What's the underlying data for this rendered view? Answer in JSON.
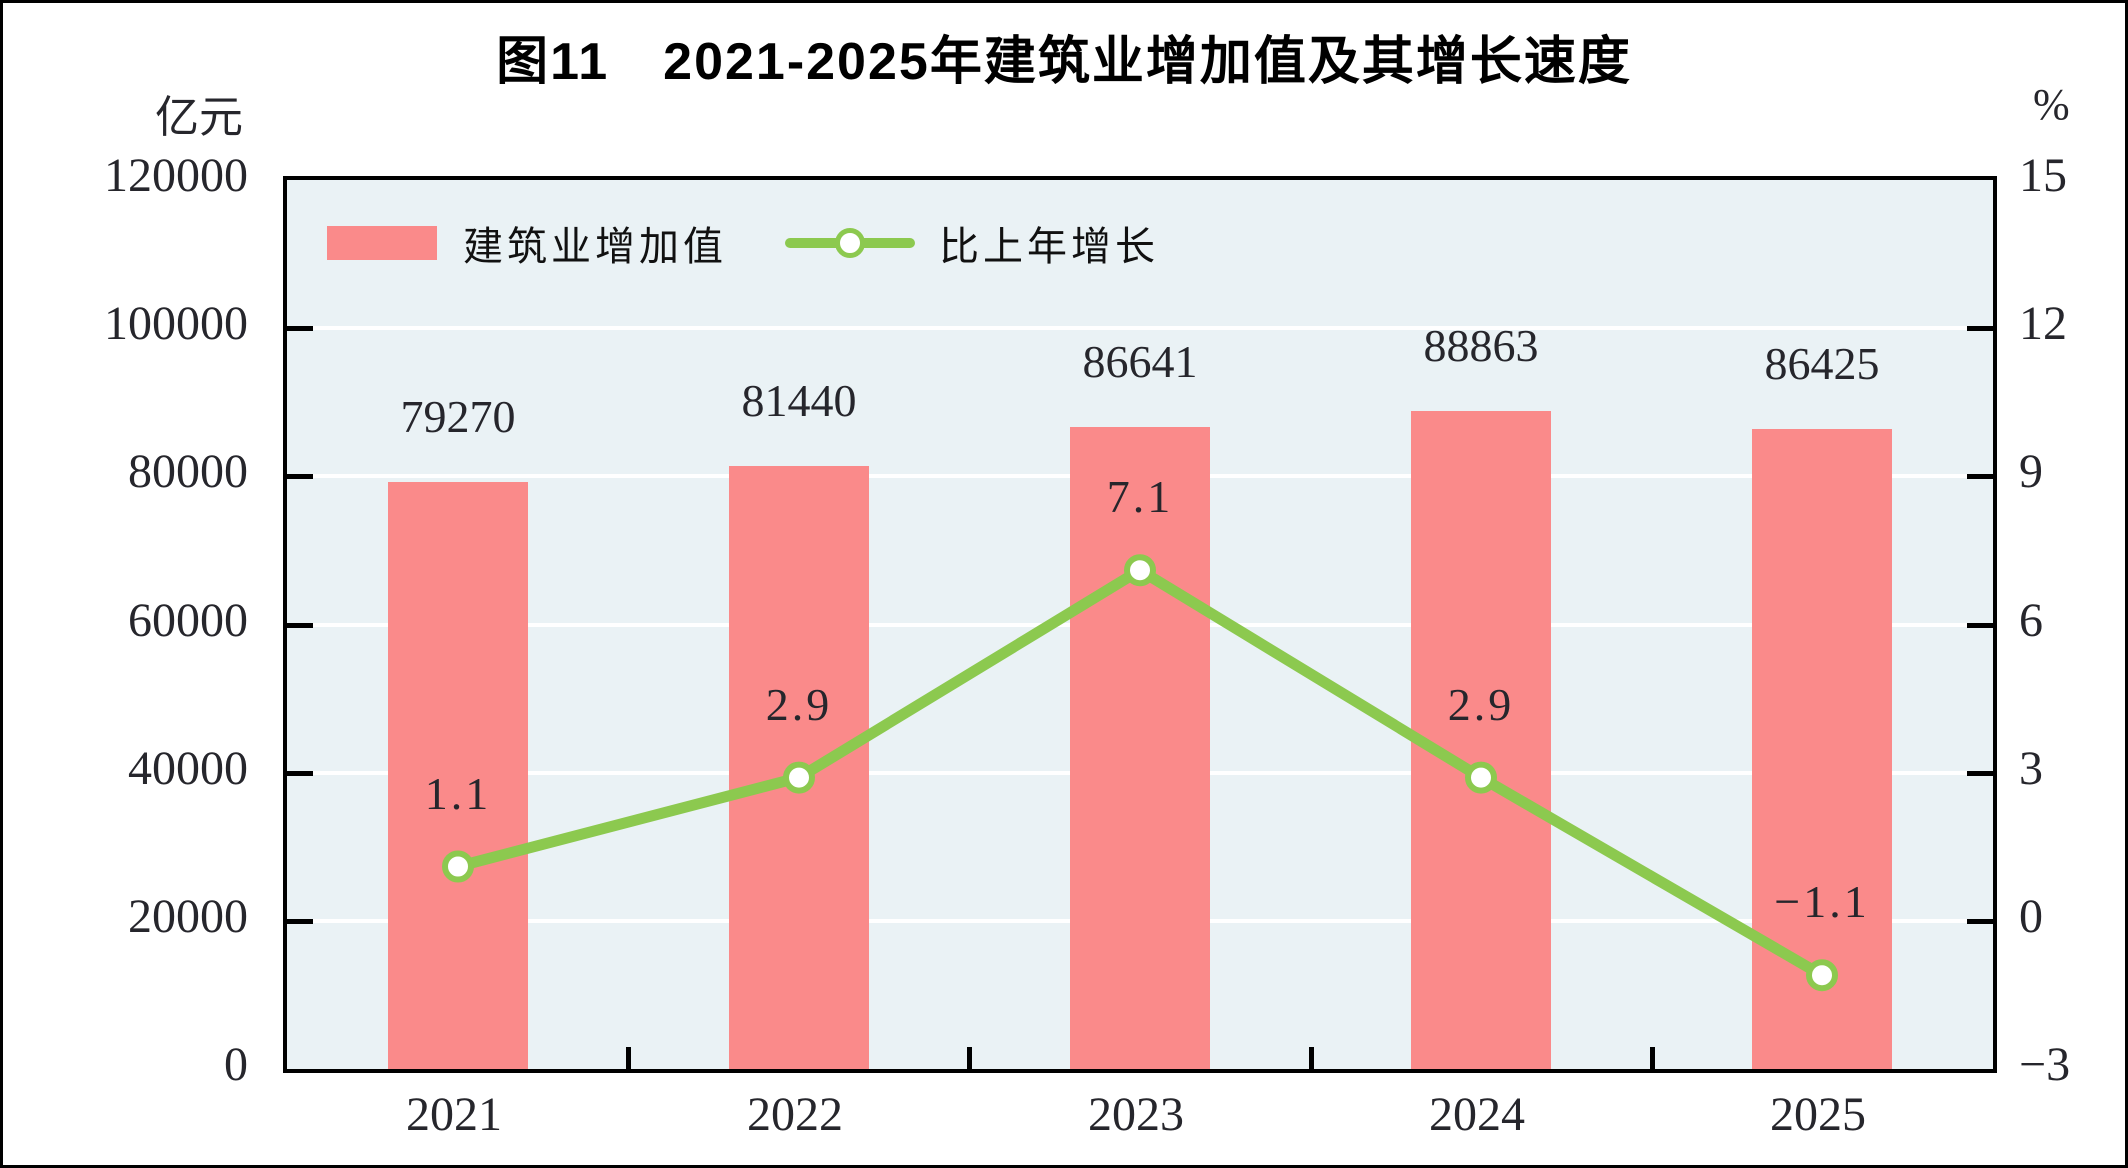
{
  "title": "图11　2021-2025年建筑业增加值及其增长速度",
  "left_axis": {
    "unit": "亿元",
    "ticks": [
      "120000",
      "100000",
      "80000",
      "60000",
      "40000",
      "20000",
      "0"
    ],
    "min": 0,
    "max": 120000
  },
  "right_axis": {
    "unit": "%",
    "ticks": [
      "15",
      "12",
      "9",
      "6",
      "3",
      "0",
      "−3"
    ],
    "min": -3,
    "max": 15
  },
  "legend": {
    "bar_label": "建筑业增加值",
    "line_label": "比上年增长"
  },
  "chart_data": {
    "type": "bar+line",
    "title": "图11　2021-2025年建筑业增加值及其增长速度",
    "categories": [
      "2021",
      "2022",
      "2023",
      "2024",
      "2025"
    ],
    "series": [
      {
        "name": "建筑业增加值",
        "type": "bar",
        "axis": "left",
        "unit": "亿元",
        "color": "#FA8A8A",
        "values": [
          79270,
          81440,
          86641,
          88863,
          86425
        ],
        "labels": [
          "79270",
          "81440",
          "86641",
          "88863",
          "86425"
        ]
      },
      {
        "name": "比上年增长",
        "type": "line",
        "axis": "right",
        "unit": "%",
        "color": "#8CC94F",
        "marker": "circle-white-fill-green-stroke",
        "values": [
          1.1,
          2.9,
          7.1,
          2.9,
          -1.1
        ],
        "labels": [
          "1.1",
          "2.9",
          "7.1",
          "2.9",
          "−1.1"
        ]
      }
    ],
    "left_ylim": [
      0,
      120000
    ],
    "right_ylim": [
      -3,
      15
    ],
    "grid": "horizontal-white-lines",
    "plot_bg": "#EAF2F5",
    "legend_position": "top-left-inside"
  }
}
